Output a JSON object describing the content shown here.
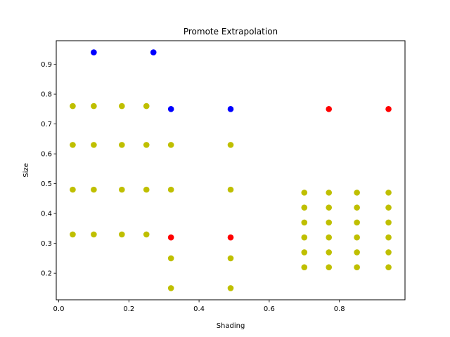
{
  "chart_data": {
    "type": "scatter",
    "title": "Promote Extrapolation",
    "xlabel": "Shading",
    "ylabel": "Size",
    "xlim": [
      -0.007,
      0.987
    ],
    "ylim": [
      0.111,
      0.979
    ],
    "xticks": [
      0.0,
      0.2,
      0.4,
      0.6,
      0.8
    ],
    "xtick_labels": [
      "0.0",
      "0.2",
      "0.4",
      "0.6",
      "0.8"
    ],
    "yticks": [
      0.2,
      0.3,
      0.4,
      0.5,
      0.6,
      0.7,
      0.8,
      0.9
    ],
    "ytick_labels": [
      "0.2",
      "0.3",
      "0.4",
      "0.5",
      "0.6",
      "0.7",
      "0.8",
      "0.9"
    ],
    "grid": false,
    "colors": {
      "yellow": "#bfbf00",
      "blue": "#0000ff",
      "red": "#ff0000"
    },
    "series": [
      {
        "color": "#bfbf00",
        "points": [
          [
            0.04,
            0.76
          ],
          [
            0.1,
            0.76
          ],
          [
            0.18,
            0.76
          ],
          [
            0.25,
            0.76
          ],
          [
            0.04,
            0.63
          ],
          [
            0.1,
            0.63
          ],
          [
            0.18,
            0.63
          ],
          [
            0.25,
            0.63
          ],
          [
            0.32,
            0.63
          ],
          [
            0.49,
            0.63
          ],
          [
            0.04,
            0.48
          ],
          [
            0.1,
            0.48
          ],
          [
            0.18,
            0.48
          ],
          [
            0.25,
            0.48
          ],
          [
            0.32,
            0.48
          ],
          [
            0.49,
            0.48
          ],
          [
            0.04,
            0.33
          ],
          [
            0.1,
            0.33
          ],
          [
            0.18,
            0.33
          ],
          [
            0.25,
            0.33
          ],
          [
            0.32,
            0.25
          ],
          [
            0.49,
            0.25
          ],
          [
            0.32,
            0.15
          ],
          [
            0.49,
            0.15
          ],
          [
            0.7,
            0.47
          ],
          [
            0.77,
            0.47
          ],
          [
            0.85,
            0.47
          ],
          [
            0.94,
            0.47
          ],
          [
            0.7,
            0.42
          ],
          [
            0.77,
            0.42
          ],
          [
            0.85,
            0.42
          ],
          [
            0.94,
            0.42
          ],
          [
            0.7,
            0.37
          ],
          [
            0.77,
            0.37
          ],
          [
            0.85,
            0.37
          ],
          [
            0.94,
            0.37
          ],
          [
            0.7,
            0.32
          ],
          [
            0.77,
            0.32
          ],
          [
            0.85,
            0.32
          ],
          [
            0.94,
            0.32
          ],
          [
            0.7,
            0.27
          ],
          [
            0.77,
            0.27
          ],
          [
            0.85,
            0.27
          ],
          [
            0.94,
            0.27
          ],
          [
            0.7,
            0.22
          ],
          [
            0.77,
            0.22
          ],
          [
            0.85,
            0.22
          ],
          [
            0.94,
            0.22
          ]
        ]
      },
      {
        "color": "#0000ff",
        "points": [
          [
            0.1,
            0.94
          ],
          [
            0.27,
            0.94
          ],
          [
            0.32,
            0.75
          ],
          [
            0.49,
            0.75
          ]
        ]
      },
      {
        "color": "#ff0000",
        "points": [
          [
            0.77,
            0.75
          ],
          [
            0.94,
            0.75
          ],
          [
            0.32,
            0.32
          ],
          [
            0.49,
            0.32
          ]
        ]
      }
    ]
  }
}
